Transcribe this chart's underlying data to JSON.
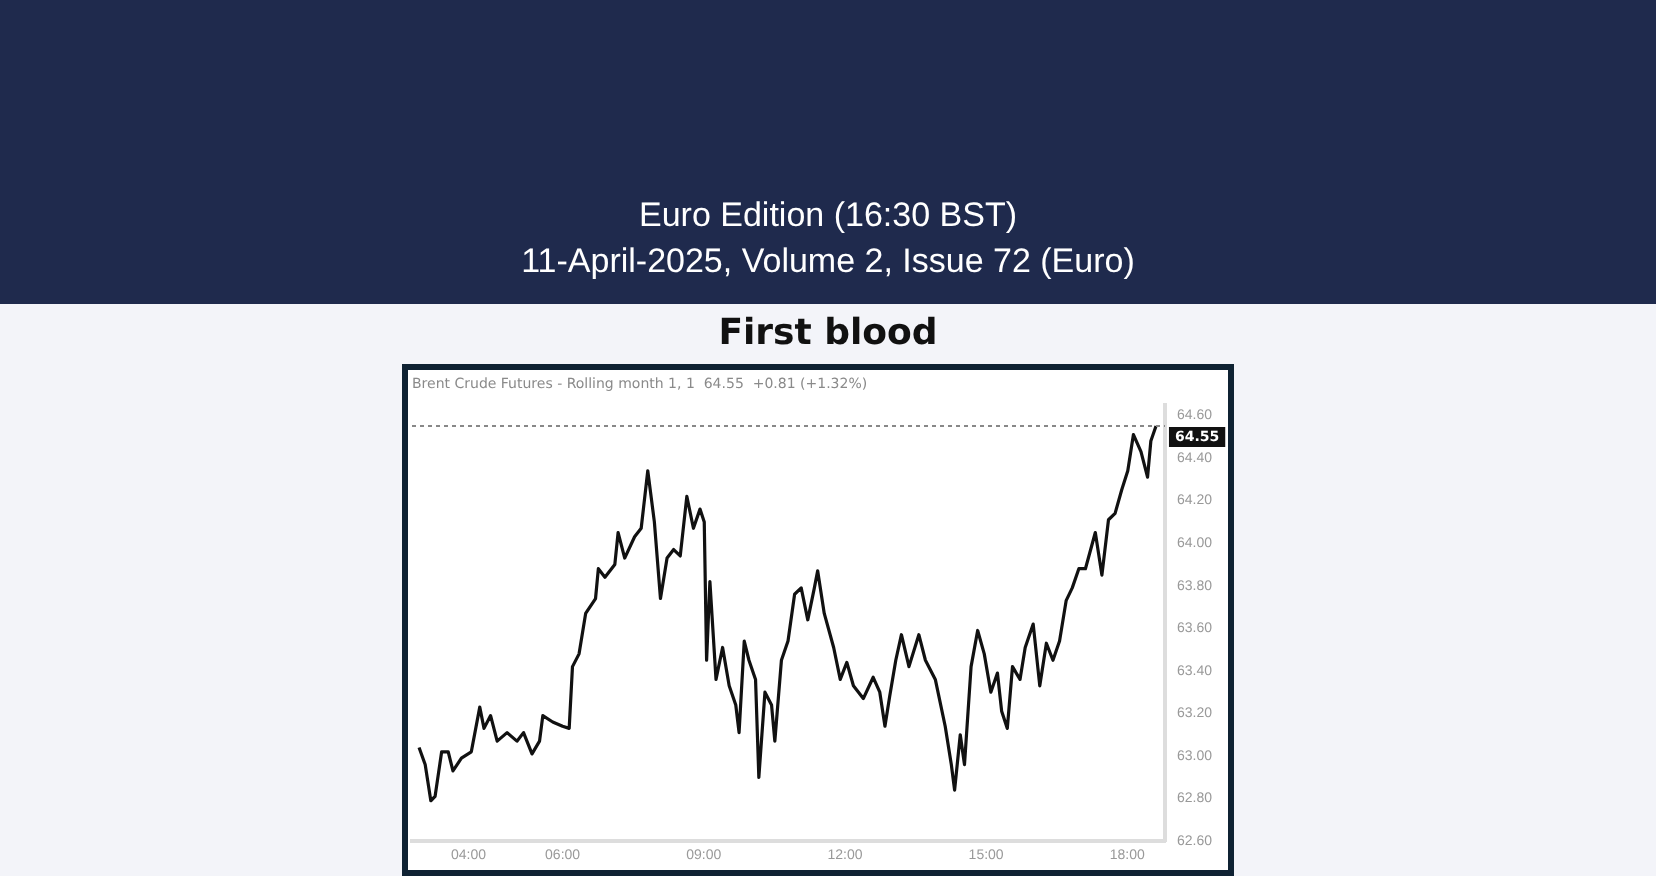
{
  "chart_data": {
    "type": "line",
    "title": "First blood",
    "subtitle": "Brent Crude Futures - Rolling month 1, 1  64.55  +0.81 (+1.32%)",
    "annotations": [
      "Euro Edition (16:30 BST)",
      "11-April-2025, Volume 2, Issue 72 (Euro)"
    ],
    "series": [
      {
        "color": "#111111",
        "x": [
          2.95,
          3.08,
          3.2,
          3.29,
          3.43,
          3.57,
          3.67,
          3.85,
          4.06,
          4.24,
          4.33,
          4.47,
          4.61,
          4.82,
          5.03,
          5.17,
          5.35,
          5.51,
          5.58,
          5.79,
          6.0,
          6.14,
          6.21,
          6.35,
          6.49,
          6.7,
          6.76,
          6.9,
          7.11,
          7.18,
          7.32,
          7.53,
          7.67,
          7.81,
          7.95,
          8.08,
          8.22,
          8.36,
          8.5,
          8.64,
          8.78,
          8.92,
          9.01,
          9.06,
          9.13,
          9.26,
          9.4,
          9.54,
          9.68,
          9.75,
          9.86,
          9.96,
          10.1,
          10.17,
          10.3,
          10.44,
          10.51,
          10.65,
          10.79,
          10.93,
          11.07,
          11.21,
          11.35,
          11.42,
          11.56,
          11.76,
          11.9,
          12.04,
          12.18,
          12.39,
          12.6,
          12.74,
          12.85,
          12.95,
          13.08,
          13.2,
          13.36,
          13.57,
          13.71,
          13.92,
          14.13,
          14.26,
          14.33,
          14.45,
          14.54,
          14.68,
          14.82,
          14.96,
          15.1,
          15.24,
          15.33,
          15.45,
          15.56,
          15.72,
          15.83,
          16.0,
          16.14,
          16.28,
          16.42,
          16.56,
          16.7,
          16.83,
          16.97,
          17.11,
          17.32,
          17.46,
          17.6,
          17.74,
          17.88,
          18.01,
          18.13,
          18.29,
          18.43,
          18.5,
          18.61
        ],
        "values": [
          63.04,
          62.96,
          62.79,
          62.81,
          63.02,
          63.02,
          62.93,
          62.99,
          63.02,
          63.23,
          63.13,
          63.19,
          63.07,
          63.11,
          63.07,
          63.11,
          63.01,
          63.07,
          63.19,
          63.16,
          63.14,
          63.13,
          63.42,
          63.48,
          63.67,
          63.74,
          63.88,
          63.84,
          63.9,
          64.05,
          63.93,
          64.03,
          64.07,
          64.34,
          64.1,
          63.74,
          63.93,
          63.97,
          63.94,
          64.22,
          64.07,
          64.16,
          64.1,
          63.45,
          63.82,
          63.36,
          63.51,
          63.33,
          63.24,
          63.11,
          63.54,
          63.45,
          63.36,
          62.9,
          63.3,
          63.24,
          63.07,
          63.45,
          63.54,
          63.76,
          63.79,
          63.64,
          63.79,
          63.87,
          63.67,
          63.51,
          63.36,
          63.44,
          63.33,
          63.27,
          63.37,
          63.3,
          63.14,
          63.28,
          63.45,
          63.57,
          63.42,
          63.57,
          63.45,
          63.36,
          63.14,
          62.96,
          62.84,
          63.1,
          62.96,
          63.42,
          63.59,
          63.48,
          63.3,
          63.39,
          63.21,
          63.13,
          63.42,
          63.36,
          63.51,
          63.62,
          63.33,
          63.53,
          63.45,
          63.54,
          63.73,
          63.79,
          63.88,
          63.88,
          64.05,
          63.85,
          64.11,
          64.14,
          64.25,
          64.34,
          64.51,
          64.43,
          64.31,
          64.48,
          64.55
        ]
      }
    ],
    "xlim": [
      2.8,
      18.8
    ],
    "xticks": [
      {
        "value": 4,
        "label": "04:00"
      },
      {
        "value": 6,
        "label": "06:00"
      },
      {
        "value": 9,
        "label": "09:00"
      },
      {
        "value": 12,
        "label": "12:00"
      },
      {
        "value": 15,
        "label": "15:00"
      },
      {
        "value": 18,
        "label": "18:00"
      }
    ],
    "ylim": [
      62.6,
      64.65
    ],
    "yticks": [
      {
        "value": 62.6,
        "label": "62.60"
      },
      {
        "value": 62.8,
        "label": "62.80"
      },
      {
        "value": 63,
        "label": "63.00"
      },
      {
        "value": 63.2,
        "label": "63.20"
      },
      {
        "value": 63.4,
        "label": "63.40"
      },
      {
        "value": 63.6,
        "label": "63.60"
      },
      {
        "value": 63.8,
        "label": "63.80"
      },
      {
        "value": 64,
        "label": "64.00"
      },
      {
        "value": 64.2,
        "label": "64.20"
      },
      {
        "value": 64.4,
        "label": "64.40"
      },
      {
        "value": 64.6,
        "label": "64.60"
      }
    ],
    "ref_lines": [
      {
        "axis": "y",
        "value": 64.55,
        "label": "64.55",
        "color": "#888888",
        "line_style": "dotted"
      }
    ],
    "grid": false,
    "legend": false,
    "marker": "none",
    "line_style": "solid"
  }
}
